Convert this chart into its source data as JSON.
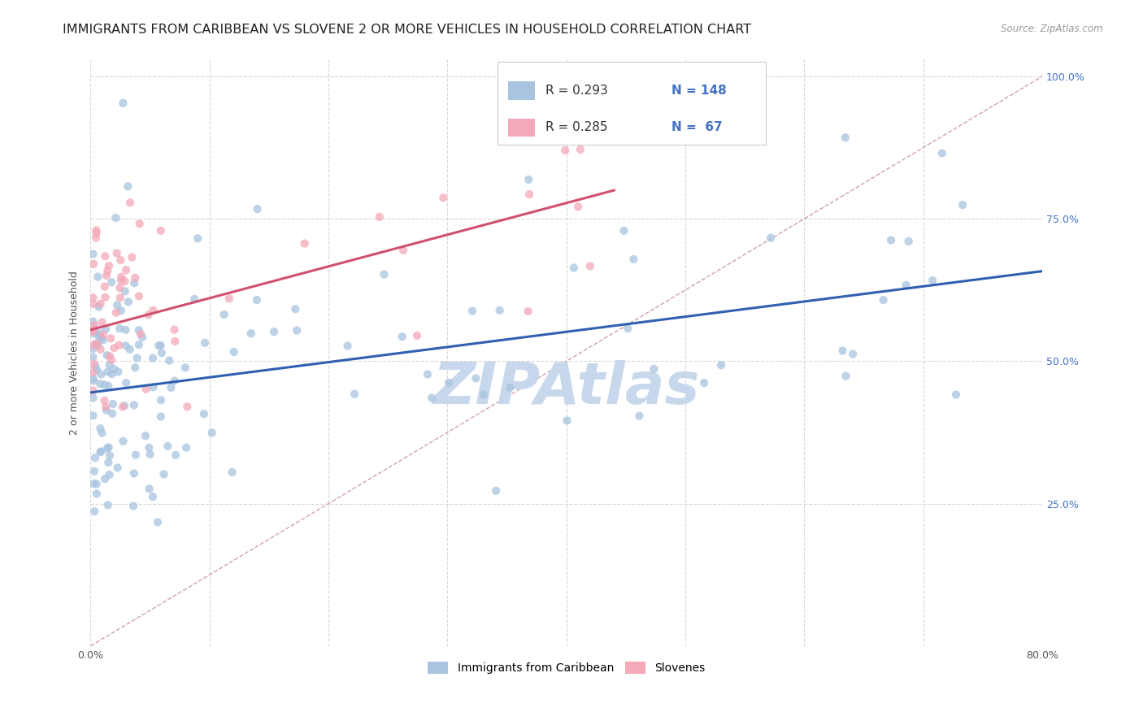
{
  "title": "IMMIGRANTS FROM CARIBBEAN VS SLOVENE 2 OR MORE VEHICLES IN HOUSEHOLD CORRELATION CHART",
  "source": "Source: ZipAtlas.com",
  "ylabel": "2 or more Vehicles in Household",
  "xmin": 0.0,
  "xmax": 0.8,
  "ymin": 0.0,
  "ymax": 1.03,
  "caribbean_color": "#a8c4e0",
  "slovene_color": "#f4a8b8",
  "caribbean_line_color": "#3060b0",
  "slovene_line_color": "#d05070",
  "diag_line_color": "#d0a0b0",
  "watermark_color": "#c8d8ec",
  "right_axis_color": "#4472c4",
  "background_color": "#ffffff",
  "grid_color": "#d8d8d8",
  "title_fontsize": 11.5,
  "axis_label_fontsize": 9,
  "tick_label_fontsize": 9,
  "legend_text_color": "#333333",
  "legend_N_color": "#4472c4",
  "caribbean_trend_x0": 0.0,
  "caribbean_trend_y0": 0.445,
  "caribbean_trend_x1": 0.8,
  "caribbean_trend_y1": 0.658,
  "slovene_trend_x0": 0.0,
  "slovene_trend_y0": 0.555,
  "slovene_trend_x1": 0.44,
  "slovene_trend_y1": 0.8,
  "diag_line_x": [
    0.0,
    0.8
  ],
  "diag_line_y": [
    0.0,
    1.0
  ],
  "right_yticks": [
    0.0,
    0.25,
    0.5,
    0.75,
    1.0
  ],
  "right_yticklabels": [
    "",
    "25.0%",
    "50.0%",
    "75.0%",
    "100.0%"
  ],
  "xticks": [
    0.0,
    0.1,
    0.2,
    0.3,
    0.4,
    0.5,
    0.6,
    0.7,
    0.8
  ],
  "xticklabels": [
    "0.0%",
    "",
    "",
    "",
    "",
    "",
    "",
    "",
    "80.0%"
  ],
  "yticks": [
    0.0,
    0.25,
    0.5,
    0.75,
    1.0
  ],
  "legend_R1": "R = 0.293",
  "legend_N1": "N = 148",
  "legend_R2": "R = 0.285",
  "legend_N2": "N =  67"
}
